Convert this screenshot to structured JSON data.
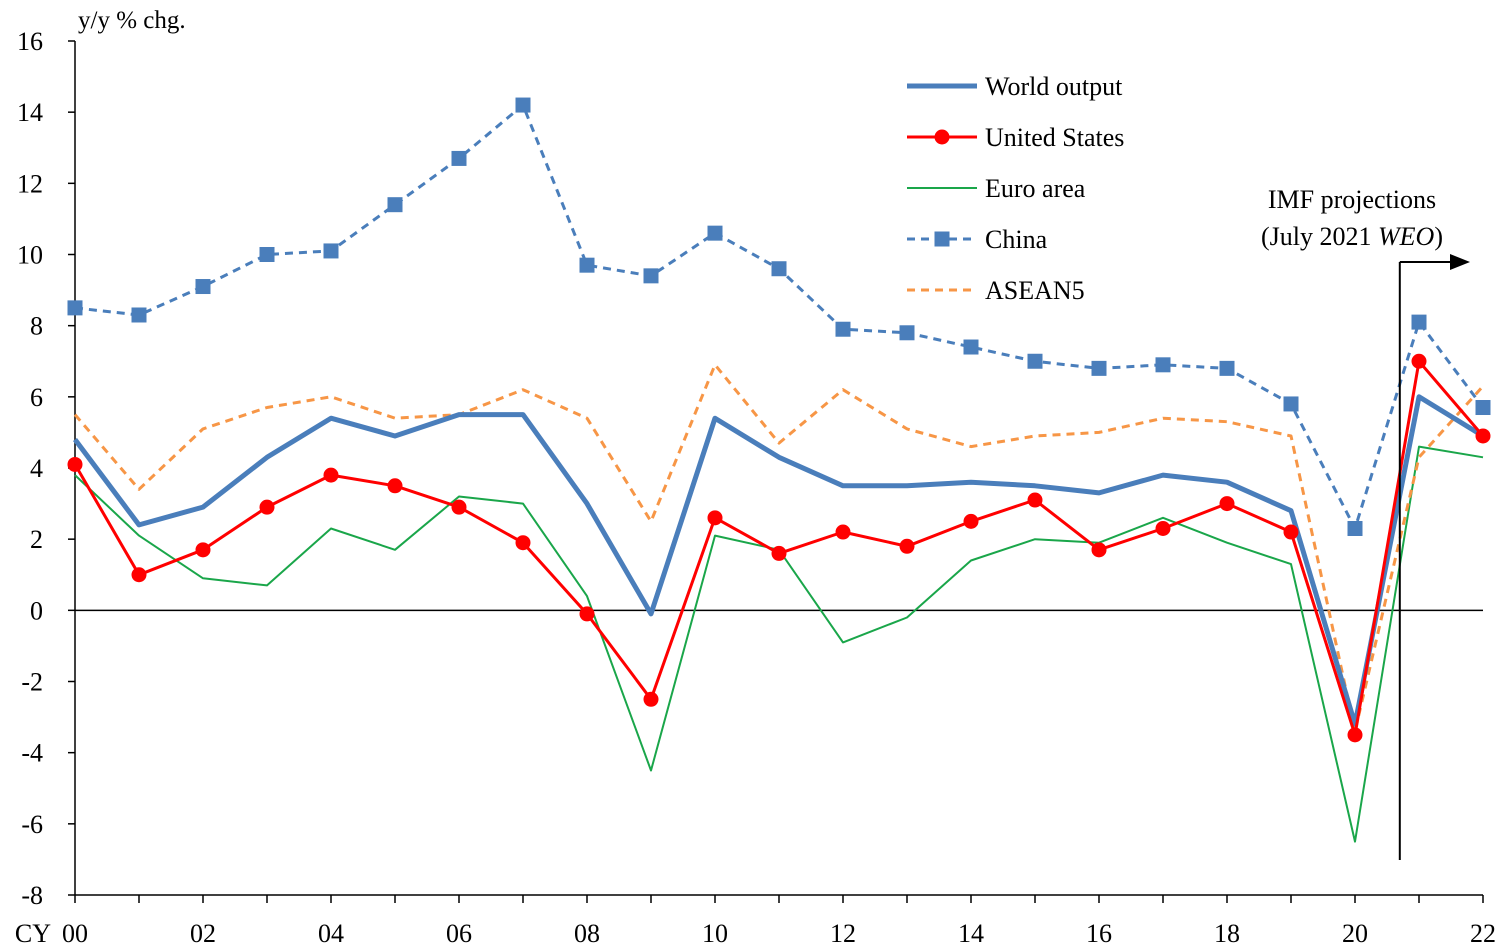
{
  "chart_data": {
    "type": "line",
    "ylabel": "y/y % chg.",
    "x_prefix": "CY",
    "x": [
      2000,
      2001,
      2002,
      2003,
      2004,
      2005,
      2006,
      2007,
      2008,
      2009,
      2010,
      2011,
      2012,
      2013,
      2014,
      2015,
      2016,
      2017,
      2018,
      2019,
      2020,
      2021,
      2022
    ],
    "x_tick_labels": [
      "00",
      "02",
      "04",
      "06",
      "08",
      "10",
      "12",
      "14",
      "16",
      "18",
      "20",
      "22"
    ],
    "ylim": [
      -8,
      16
    ],
    "y_ticks": [
      -8,
      -6,
      -4,
      -2,
      0,
      2,
      4,
      6,
      8,
      10,
      12,
      14,
      16
    ],
    "grid": false,
    "legend_position": "top-right",
    "series": [
      {
        "name": "World output",
        "color": "#4a7ebb",
        "style": "thick-solid",
        "marker": "none",
        "values": [
          4.8,
          2.4,
          2.9,
          4.3,
          5.4,
          4.9,
          5.5,
          5.5,
          3.0,
          -0.1,
          5.4,
          4.3,
          3.5,
          3.5,
          3.6,
          3.5,
          3.3,
          3.8,
          3.6,
          2.8,
          -3.2,
          6.0,
          4.9
        ]
      },
      {
        "name": "United States",
        "color": "#ff0000",
        "style": "solid",
        "marker": "circle",
        "values": [
          4.1,
          1.0,
          1.7,
          2.9,
          3.8,
          3.5,
          2.9,
          1.9,
          -0.1,
          -2.5,
          2.6,
          1.6,
          2.2,
          1.8,
          2.5,
          3.1,
          1.7,
          2.3,
          3.0,
          2.2,
          -3.5,
          7.0,
          4.9
        ]
      },
      {
        "name": "Euro area",
        "color": "#1aa64a",
        "style": "thin-solid",
        "marker": "none",
        "values": [
          3.8,
          2.1,
          0.9,
          0.7,
          2.3,
          1.7,
          3.2,
          3.0,
          0.4,
          -4.5,
          2.1,
          1.7,
          -0.9,
          -0.2,
          1.4,
          2.0,
          1.9,
          2.6,
          1.9,
          1.3,
          -6.5,
          4.6,
          4.3
        ]
      },
      {
        "name": "China",
        "color": "#4a7ebb",
        "style": "dashed",
        "marker": "square",
        "values": [
          8.5,
          8.3,
          9.1,
          10.0,
          10.1,
          11.4,
          12.7,
          14.2,
          9.7,
          9.4,
          10.6,
          9.6,
          7.9,
          7.8,
          7.4,
          7.0,
          6.8,
          6.9,
          6.8,
          5.8,
          2.3,
          8.1,
          5.7
        ]
      },
      {
        "name": "ASEAN5",
        "color": "#f79646",
        "style": "dashed",
        "marker": "none",
        "values": [
          5.5,
          3.4,
          5.1,
          5.7,
          6.0,
          5.4,
          5.5,
          6.2,
          5.4,
          2.5,
          6.9,
          4.7,
          6.2,
          5.1,
          4.6,
          4.9,
          5.0,
          5.4,
          5.3,
          4.9,
          -3.4,
          4.3,
          6.3
        ]
      }
    ],
    "annotation": {
      "line1": "IMF projections",
      "line2_prefix": "(July 2021 ",
      "line2_italic": "WEO",
      "line2_suffix": ")",
      "start_x": 2020.7
    }
  }
}
